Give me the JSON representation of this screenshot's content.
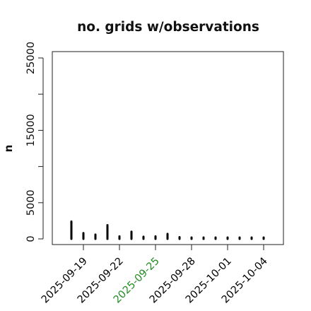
{
  "chart_data": {
    "type": "bar",
    "title": "no. grids w/observations",
    "xlabel": "",
    "ylabel": "n",
    "ylim": [
      0,
      26000
    ],
    "y_ticks": [
      0,
      5000,
      10000,
      15000,
      20000,
      25000
    ],
    "y_tick_labels": [
      "0",
      "5000",
      "",
      "15000",
      "",
      "25000"
    ],
    "x": [
      "2025-09-18",
      "2025-09-19",
      "2025-09-20",
      "2025-09-21",
      "2025-09-22",
      "2025-09-23",
      "2025-09-24",
      "2025-09-25",
      "2025-09-26",
      "2025-09-27",
      "2025-09-28",
      "2025-09-29",
      "2025-09-30",
      "2025-10-01",
      "2025-10-02",
      "2025-10-03",
      "2025-10-04"
    ],
    "values": [
      2400,
      800,
      600,
      1900,
      350,
      1000,
      300,
      350,
      700,
      250,
      150,
      150,
      150,
      150,
      150,
      150,
      150
    ],
    "x_ticks": [
      {
        "date": "2025-09-19",
        "label": "2025-09-19",
        "color": "#000000"
      },
      {
        "date": "2025-09-22",
        "label": "2025-09-22",
        "color": "#000000"
      },
      {
        "date": "2025-09-25",
        "label": "2025-09-25",
        "color": "#228b22"
      },
      {
        "date": "2025-09-28",
        "label": "2025-09-28",
        "color": "#000000"
      },
      {
        "date": "2025-10-01",
        "label": "2025-10-01",
        "color": "#000000"
      },
      {
        "date": "2025-10-04",
        "label": "2025-10-04",
        "color": "#000000"
      }
    ],
    "grid": false,
    "bar_color": "#000000"
  }
}
